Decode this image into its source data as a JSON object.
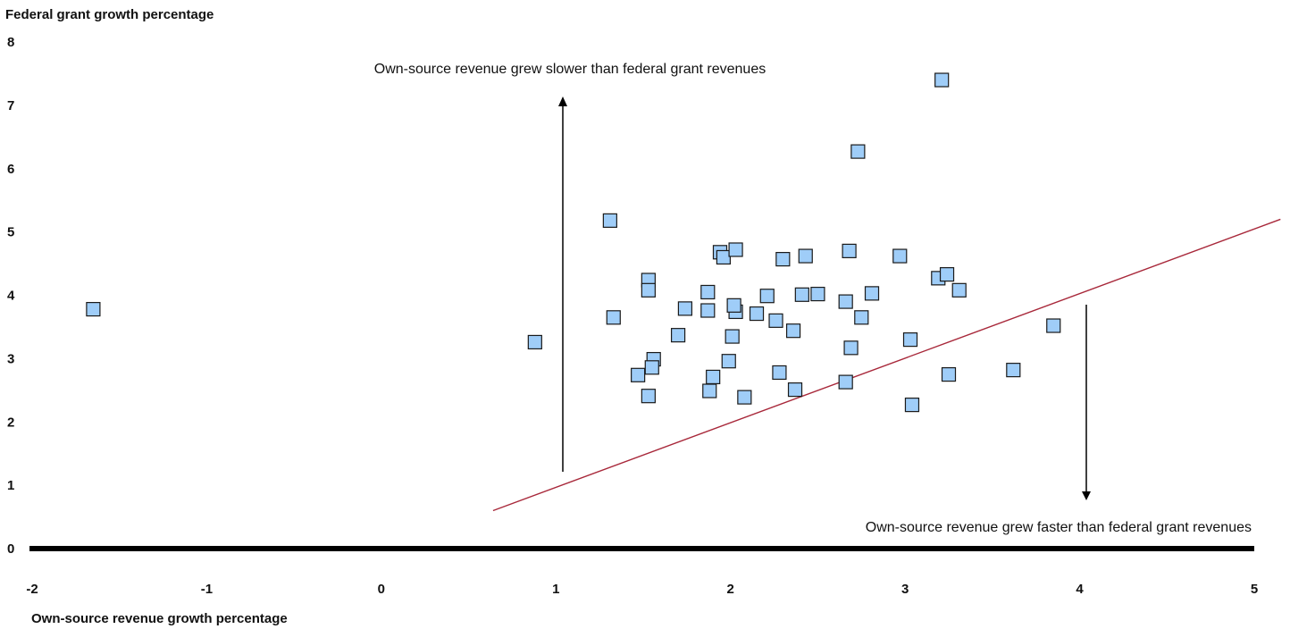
{
  "chart_data": {
    "type": "scatter",
    "title": "",
    "ylabel": "Federal grant growth percentage",
    "xlabel": "Own-source revenue growth percentage",
    "xlim": [
      -2,
      5
    ],
    "ylim": [
      0,
      8
    ],
    "x_ticks": [
      "-2",
      "-1",
      "0",
      "1",
      "2",
      "3",
      "4",
      "5"
    ],
    "y_ticks": [
      "0",
      "1",
      "2",
      "3",
      "4",
      "5",
      "6",
      "7",
      "8"
    ],
    "grid": false,
    "marker": "square",
    "marker_color": "#9fcdf8",
    "marker_edge_color": "#1a1a1a",
    "reference_line": {
      "x": [
        0.64,
        5.15
      ],
      "y": [
        0.6,
        5.2
      ],
      "color": "#a8283a"
    },
    "annotations": [
      {
        "text": "Own-source revenue grew slower than federal grant revenues",
        "arrow": "up"
      },
      {
        "text": "Own-source revenue grew faster than federal grant revenues",
        "arrow": "down"
      }
    ],
    "points": [
      [
        -1.65,
        3.78
      ],
      [
        0.88,
        3.26
      ],
      [
        1.31,
        5.18
      ],
      [
        1.33,
        3.65
      ],
      [
        1.47,
        2.74
      ],
      [
        1.53,
        4.24
      ],
      [
        1.53,
        4.08
      ],
      [
        1.53,
        2.41
      ],
      [
        1.56,
        2.99
      ],
      [
        1.55,
        2.86
      ],
      [
        1.7,
        3.37
      ],
      [
        1.74,
        3.79
      ],
      [
        1.87,
        4.05
      ],
      [
        1.87,
        3.76
      ],
      [
        1.88,
        2.49
      ],
      [
        1.9,
        2.71
      ],
      [
        1.94,
        4.68
      ],
      [
        1.96,
        4.6
      ],
      [
        1.99,
        2.96
      ],
      [
        2.01,
        3.35
      ],
      [
        2.03,
        4.72
      ],
      [
        2.03,
        3.74
      ],
      [
        2.02,
        3.84
      ],
      [
        2.08,
        2.39
      ],
      [
        2.15,
        3.71
      ],
      [
        2.21,
        3.99
      ],
      [
        2.26,
        3.6
      ],
      [
        2.28,
        2.78
      ],
      [
        2.3,
        4.57
      ],
      [
        2.36,
        3.44
      ],
      [
        2.37,
        2.51
      ],
      [
        2.41,
        4.01
      ],
      [
        2.43,
        4.62
      ],
      [
        2.5,
        4.02
      ],
      [
        2.66,
        3.9
      ],
      [
        2.66,
        2.63
      ],
      [
        2.68,
        4.7
      ],
      [
        2.69,
        3.17
      ],
      [
        2.73,
        6.27
      ],
      [
        2.75,
        3.65
      ],
      [
        2.81,
        4.03
      ],
      [
        2.97,
        4.62
      ],
      [
        3.03,
        3.3
      ],
      [
        3.04,
        2.27
      ],
      [
        3.19,
        4.27
      ],
      [
        3.21,
        7.4
      ],
      [
        3.24,
        4.33
      ],
      [
        3.25,
        2.75
      ],
      [
        3.31,
        4.08
      ],
      [
        3.62,
        2.82
      ],
      [
        3.85,
        3.52
      ]
    ]
  }
}
